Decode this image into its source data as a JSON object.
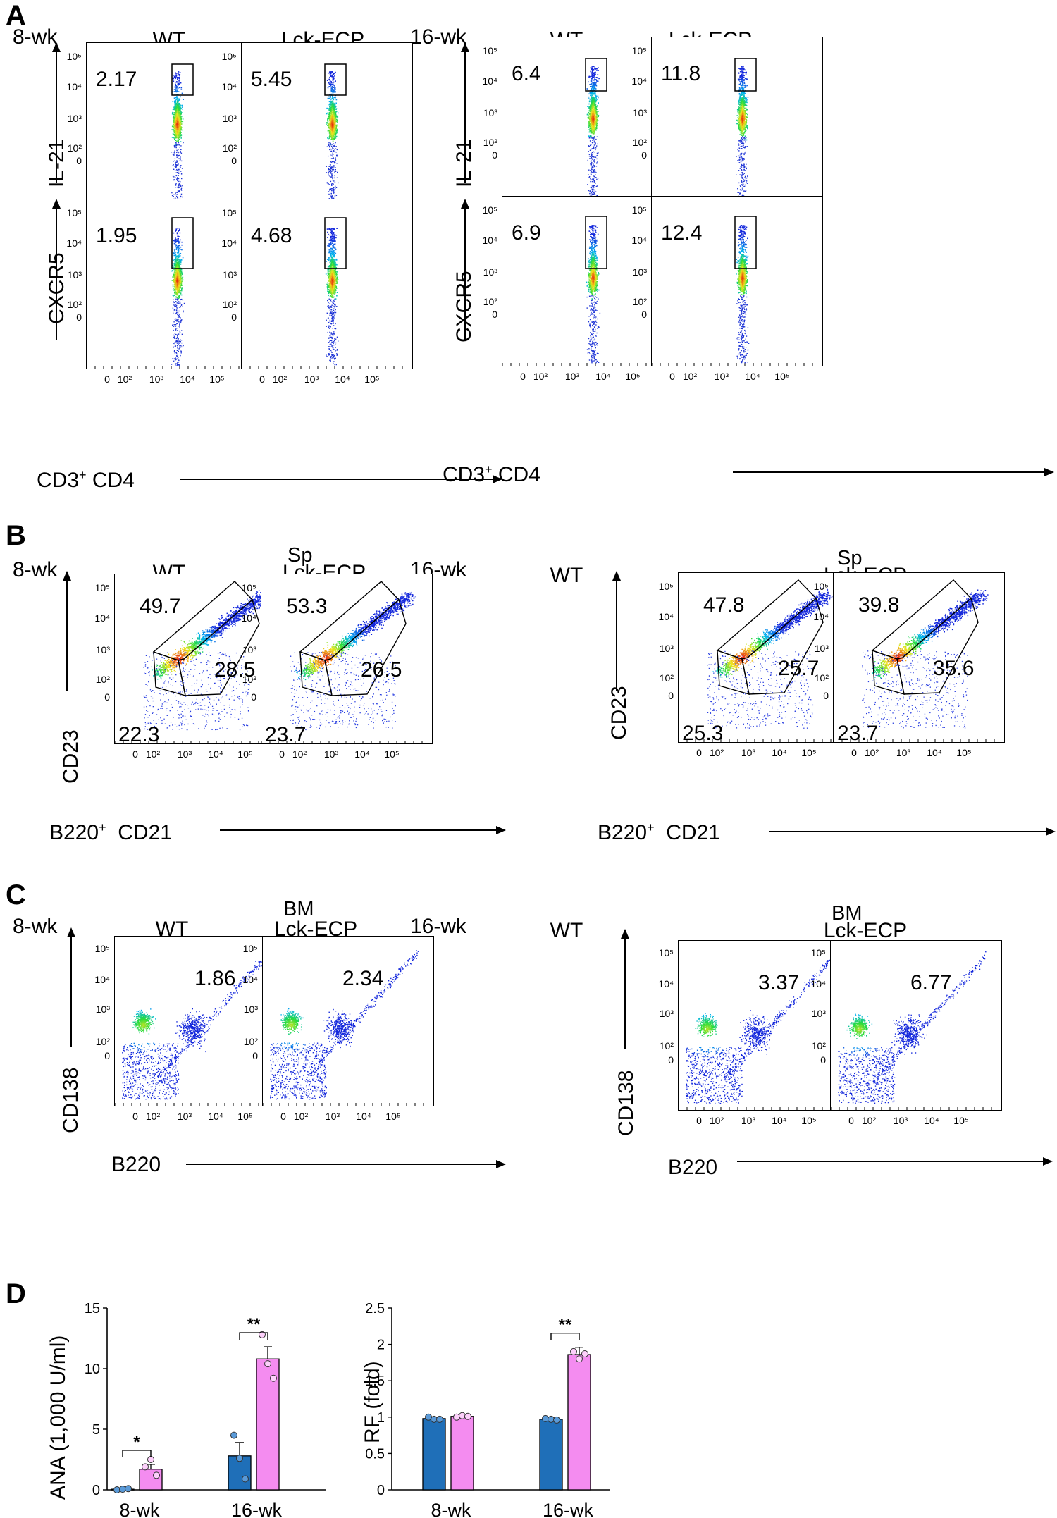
{
  "panels": {
    "A": {
      "letter": "A",
      "left_age": "8-wk",
      "right_age": "16-wk",
      "cond_wt": "WT",
      "cond_ko": "Lck-ECP",
      "ylabel_top": "IL-21",
      "ylabel_bottom": "CXCR5",
      "xlabel_prefix": "CD3",
      "xlabel_sup": "+",
      "xlabel_main": "CD4",
      "values": {
        "il21_8wk_wt": "2.17",
        "il21_8wk_ko": "5.45",
        "il21_16wk_wt": "6.4",
        "il21_16wk_ko": "11.8",
        "cxcr5_8wk_wt": "1.95",
        "cxcr5_8wk_ko": "4.68",
        "cxcr5_16wk_wt": "6.9",
        "cxcr5_16wk_ko": "12.4"
      }
    },
    "B": {
      "letter": "B",
      "left_age": "8-wk",
      "right_age": "16-wk",
      "tissue": "Sp",
      "cond_wt": "WT",
      "cond_ko": "Lck-ECP",
      "ylabel": "CD23",
      "xlabel_prefix": "B220",
      "xlabel_sup": "+",
      "xlabel_main": "CD21",
      "values": {
        "8wk_wt": {
          "top": "49.7",
          "right": "28.5",
          "bottom": "22.3"
        },
        "8wk_ko": {
          "top": "53.3",
          "right": "26.5",
          "bottom": "23.7"
        },
        "16wk_wt": {
          "top": "47.8",
          "right": "25.7",
          "bottom": "25.3"
        },
        "16wk_ko": {
          "top": "39.8",
          "right": "35.6",
          "bottom": "23.7"
        }
      }
    },
    "C": {
      "letter": "C",
      "left_age": "8-wk",
      "right_age": "16-wk",
      "tissue": "BM",
      "cond_wt": "WT",
      "cond_ko": "Lck-ECP",
      "ylabel": "CD138",
      "xlabel": "B220",
      "values": {
        "8wk_wt": "1.86",
        "8wk_ko": "2.34",
        "16wk_wt": "3.37",
        "16wk_ko": "6.77"
      }
    },
    "D": {
      "letter": "D"
    }
  },
  "ticks": {
    "y": [
      "10⁵",
      "10⁴",
      "10³",
      "10²",
      "0"
    ],
    "x": [
      "0",
      "10²",
      "10³",
      "10⁴",
      "10⁵"
    ]
  },
  "colors": {
    "wt_bar": "#1f6fb8",
    "ko_bar": "#f48cf0",
    "density_low": "#1f35d6",
    "density_high": "#e01010"
  },
  "chart_data": [
    {
      "type": "bar",
      "ylabel": "ANA (1,000 U/ml)",
      "categories": [
        "8-wk",
        "16-wk"
      ],
      "ylim": [
        0,
        15
      ],
      "yticks": [
        "0",
        "5",
        "10",
        "15"
      ],
      "series": [
        {
          "values": [
            0.05,
            2.8
          ],
          "points": [
            [
              0.0,
              0.05,
              0.1
            ],
            [
              4.5,
              2.6,
              0.9
            ]
          ],
          "error": [
            0.05,
            1.1
          ]
        },
        {
          "values": [
            1.7,
            10.8
          ],
          "points": [
            [
              1.9,
              2.5,
              1.2
            ],
            [
              12.8,
              10.4,
              9.2
            ]
          ],
          "error": [
            0.4,
            1.0
          ]
        }
      ],
      "significance": [
        "*",
        "**"
      ]
    },
    {
      "type": "bar",
      "ylabel": "RF (fold)",
      "categories": [
        "8-wk",
        "16-wk"
      ],
      "ylim": [
        0,
        2.5
      ],
      "yticks": [
        "0",
        "0.5",
        "1",
        "1.5",
        "2",
        "2.5"
      ],
      "series": [
        {
          "values": [
            0.98,
            0.97
          ],
          "points": [
            [
              1.0,
              0.97,
              0.97
            ],
            [
              0.98,
              0.97,
              0.96
            ]
          ],
          "error": [
            0.02,
            0.02
          ]
        },
        {
          "values": [
            1.01,
            1.86
          ],
          "points": [
            [
              1.0,
              1.02,
              1.01
            ],
            [
              1.9,
              1.8,
              1.87
            ]
          ],
          "error": [
            0.02,
            0.1
          ]
        }
      ],
      "significance": [
        "",
        "**"
      ]
    }
  ]
}
